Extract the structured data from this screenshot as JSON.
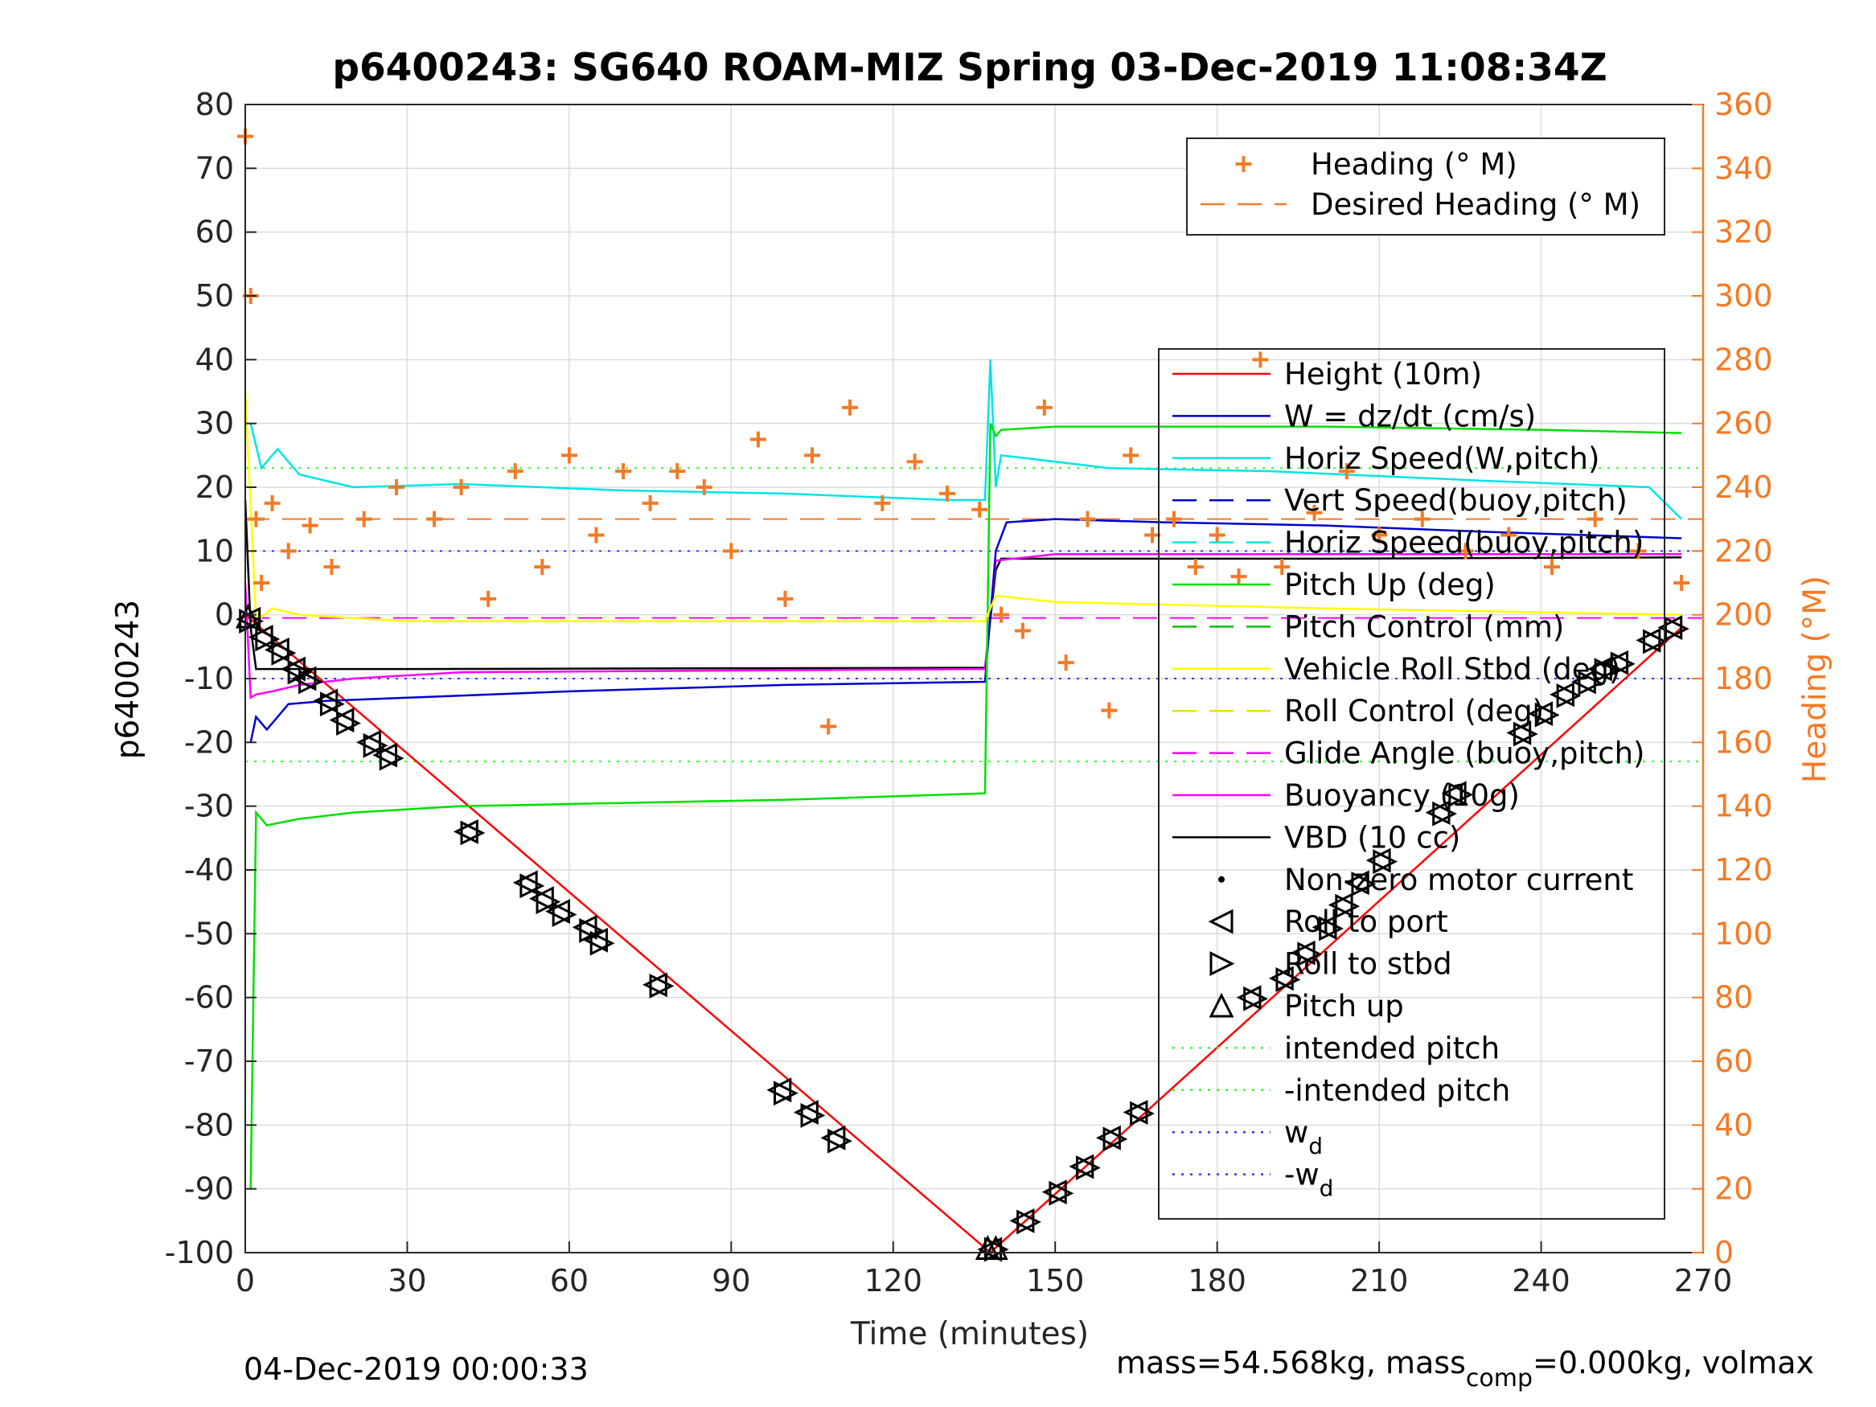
{
  "chart_data": {
    "type": "line",
    "title": "p6400243: SG640 ROAM-MIZ Spring 03-Dec-2019 11:08:34Z",
    "xlabel": "Time (minutes)",
    "ylabel": "p6400243",
    "y2label": "Heading (°M)",
    "xlim": [
      0,
      270
    ],
    "ylim": [
      -100,
      80
    ],
    "y2lim": [
      0,
      360
    ],
    "xticks": [
      0,
      30,
      60,
      90,
      120,
      150,
      180,
      210,
      240,
      270
    ],
    "yticks": [
      -100,
      -90,
      -80,
      -70,
      -60,
      -50,
      -40,
      -30,
      -20,
      -10,
      0,
      10,
      20,
      30,
      40,
      50,
      60,
      70,
      80
    ],
    "y2ticks": [
      0,
      20,
      40,
      60,
      80,
      100,
      120,
      140,
      160,
      180,
      200,
      220,
      240,
      260,
      280,
      300,
      320,
      340,
      360
    ],
    "grid": true,
    "footer_left": "04-Dec-2019 00:00:33",
    "footer_right": "mass=54.568kg, mass",
    "footer_right_sub": "comp",
    "footer_right_tail": "=0.000kg, volmax",
    "legend_top": {
      "placement": "top-right",
      "entries": [
        {
          "label": "Heading (° M)",
          "color": "#f47a24",
          "style": "plus"
        },
        {
          "label": "Desired Heading (° M)",
          "color": "#f47a24",
          "style": "dash"
        }
      ]
    },
    "legend_main": {
      "placement": "right",
      "entries": [
        {
          "label": "Height (10m)",
          "color": "#ff0000",
          "style": "solid"
        },
        {
          "label": "W = dz/dt (cm/s)",
          "color": "#0000cc",
          "style": "solid"
        },
        {
          "label": "Horiz Speed(W,pitch)",
          "color": "#00e5e5",
          "style": "solid"
        },
        {
          "label": "Vert Speed(buoy,pitch)",
          "color": "#0000cc",
          "style": "dash"
        },
        {
          "label": "Horiz Speed(buoy,pitch)",
          "color": "#00e5e5",
          "style": "dash"
        },
        {
          "label": "Pitch Up (deg)",
          "color": "#00e000",
          "style": "solid"
        },
        {
          "label": "Pitch Control (mm)",
          "color": "#00c000",
          "style": "dash"
        },
        {
          "label": "Vehicle Roll Stbd (deg)",
          "color": "#ffff00",
          "style": "solid"
        },
        {
          "label": "Roll Control (deg)",
          "color": "#e6e600",
          "style": "dash"
        },
        {
          "label": "Glide Angle (buoy,pitch)",
          "color": "#ff00ff",
          "style": "dash"
        },
        {
          "label": "Buoyancy (10g)",
          "color": "#ff00ff",
          "style": "solid"
        },
        {
          "label": "VBD (10 cc)",
          "color": "#000000",
          "style": "solid"
        },
        {
          "label": "Non-zero motor current",
          "color": "#000000",
          "style": "dot"
        },
        {
          "label": "Roll to port",
          "color": "#000000",
          "style": "tri-left"
        },
        {
          "label": "Roll to stbd",
          "color": "#000000",
          "style": "tri-right"
        },
        {
          "label": "Pitch up",
          "color": "#000000",
          "style": "tri-up"
        },
        {
          "label": "intended pitch",
          "color": "#33ff33",
          "style": "dotted"
        },
        {
          "label": "-intended pitch",
          "color": "#33ff33",
          "style": "dotted"
        },
        {
          "label": "w",
          "sub": "d",
          "color": "#3333ff",
          "style": "dotted"
        },
        {
          "label": "-w",
          "sub": "d",
          "color": "#3333ff",
          "style": "dotted"
        }
      ]
    },
    "reference_lines": {
      "intended_pitch": 23,
      "neg_intended_pitch": -23,
      "w_d": 10,
      "neg_w_d": -10,
      "desired_heading_deg": 230,
      "glide_angle": -0.5
    },
    "series": [
      {
        "name": "Height (10m)",
        "color": "#ff0000",
        "x": [
          0,
          138,
          266
        ],
        "y": [
          0,
          -100,
          -2
        ]
      },
      {
        "name": "VBD (10 cc)",
        "color": "#000000",
        "x": [
          0,
          1,
          2,
          30,
          137,
          139,
          140,
          200,
          266
        ],
        "y": [
          18,
          -2,
          -8.5,
          -8.5,
          -8.3,
          7,
          8.8,
          8.8,
          9
        ]
      },
      {
        "name": "Buoyancy (10g)",
        "color": "#ff00ff",
        "x": [
          0,
          1,
          2,
          5,
          10,
          20,
          40,
          137,
          139,
          150,
          266
        ],
        "y": [
          5,
          -13,
          -12.5,
          -12,
          -11,
          -10,
          -9,
          -8.5,
          8.5,
          9.5,
          9.5
        ]
      },
      {
        "name": "W = dz/dt (cm/s)",
        "color": "#0000cc",
        "x": [
          1,
          2,
          4,
          8,
          15,
          30,
          60,
          100,
          137,
          139,
          141,
          150,
          170,
          200,
          230,
          266
        ],
        "y": [
          -20,
          -16,
          -18,
          -14,
          -13.5,
          -13,
          -12,
          -11,
          -10.5,
          10,
          14.5,
          15,
          14.5,
          14,
          13,
          12
        ]
      },
      {
        "name": "Horiz Speed(W,pitch)",
        "color": "#00e5e5",
        "x": [
          1,
          3,
          6,
          10,
          20,
          40,
          70,
          100,
          130,
          137,
          138,
          139,
          140,
          145,
          160,
          190,
          230,
          260,
          266
        ],
        "y": [
          30,
          23,
          26,
          22,
          20,
          20.5,
          19.5,
          19,
          18,
          18,
          40,
          20,
          25,
          24.5,
          23,
          22.5,
          21,
          20,
          15
        ]
      },
      {
        "name": "Pitch Up (deg)",
        "color": "#00e000",
        "x": [
          1,
          2,
          4,
          10,
          20,
          40,
          70,
          100,
          137,
          138,
          139,
          140,
          150,
          200,
          240,
          266
        ],
        "y": [
          -90,
          -31,
          -33,
          -32,
          -31,
          -30,
          -29.5,
          -29,
          -28,
          30,
          28,
          29,
          29.5,
          29.5,
          29,
          28.5
        ]
      },
      {
        "name": "Vehicle Roll Stbd (deg)",
        "color": "#ffff00",
        "x": [
          0,
          2,
          5,
          10,
          30,
          60,
          100,
          137,
          139,
          150,
          200,
          266
        ],
        "y": [
          35,
          -1,
          1,
          0,
          -1,
          -1,
          -1,
          -1,
          3,
          2,
          1,
          0
        ]
      },
      {
        "name": "Heading (° M)",
        "color": "#f47a24",
        "x": [
          0,
          1,
          2,
          3,
          5,
          8,
          12,
          16,
          22,
          28,
          35,
          40,
          45,
          50,
          55,
          60,
          65,
          70,
          75,
          80,
          85,
          90,
          95,
          100,
          105,
          108,
          112,
          118,
          124,
          130,
          136,
          140,
          144,
          148,
          152,
          156,
          160,
          164,
          168,
          172,
          176,
          180,
          184,
          188,
          192,
          198,
          204,
          210,
          218,
          226,
          234,
          242,
          250,
          258,
          266
        ],
        "y": [
          350,
          300,
          230,
          210,
          235,
          220,
          228,
          215,
          230,
          240,
          230,
          240,
          205,
          245,
          215,
          250,
          225,
          245,
          235,
          245,
          240,
          220,
          255,
          205,
          250,
          165,
          265,
          235,
          248,
          238,
          233,
          200,
          195,
          265,
          185,
          230,
          170,
          250,
          225,
          230,
          215,
          225,
          212,
          280,
          215,
          232,
          245,
          225,
          230,
          220,
          225,
          215,
          230,
          220,
          210
        ]
      }
    ],
    "markers": {
      "roll_to_port": [
        {
          "x": 0.7,
          "y": -0.7
        },
        {
          "x": 3,
          "y": -3.5
        },
        {
          "x": 6,
          "y": -5.5
        },
        {
          "x": 9,
          "y": -8.5
        },
        {
          "x": 11,
          "y": -10
        },
        {
          "x": 15,
          "y": -13.5
        },
        {
          "x": 18,
          "y": -16.5
        },
        {
          "x": 23,
          "y": -20
        },
        {
          "x": 26,
          "y": -22
        },
        {
          "x": 41,
          "y": -34
        },
        {
          "x": 52,
          "y": -42
        },
        {
          "x": 55,
          "y": -44.5
        },
        {
          "x": 58,
          "y": -46.5
        },
        {
          "x": 63,
          "y": -49
        },
        {
          "x": 65,
          "y": -51
        },
        {
          "x": 76,
          "y": -58
        },
        {
          "x": 99,
          "y": -74.5
        },
        {
          "x": 104,
          "y": -78
        },
        {
          "x": 109,
          "y": -82
        },
        {
          "x": 138,
          "y": -99.5
        },
        {
          "x": 144,
          "y": -95
        },
        {
          "x": 150,
          "y": -90.5
        },
        {
          "x": 155,
          "y": -86.5
        },
        {
          "x": 160,
          "y": -82
        },
        {
          "x": 165,
          "y": -78
        },
        {
          "x": 186,
          "y": -60
        },
        {
          "x": 192,
          "y": -57
        },
        {
          "x": 196,
          "y": -53
        },
        {
          "x": 200,
          "y": -49
        },
        {
          "x": 203,
          "y": -45.5
        },
        {
          "x": 206,
          "y": -42
        },
        {
          "x": 210,
          "y": -38.5
        },
        {
          "x": 221,
          "y": -31
        },
        {
          "x": 224,
          "y": -28
        },
        {
          "x": 236,
          "y": -18.5
        },
        {
          "x": 240,
          "y": -15.5
        },
        {
          "x": 244,
          "y": -12.5
        },
        {
          "x": 248,
          "y": -10.5
        },
        {
          "x": 251,
          "y": -8.5
        },
        {
          "x": 254,
          "y": -7.5
        },
        {
          "x": 260,
          "y": -4
        },
        {
          "x": 264,
          "y": -2
        }
      ],
      "roll_to_stbd": [
        {
          "x": 1,
          "y": -1
        },
        {
          "x": 4,
          "y": -3.8
        },
        {
          "x": 7,
          "y": -6
        },
        {
          "x": 10,
          "y": -9
        },
        {
          "x": 12,
          "y": -10.5
        },
        {
          "x": 16,
          "y": -14
        },
        {
          "x": 19,
          "y": -17
        },
        {
          "x": 24,
          "y": -20.5
        },
        {
          "x": 27,
          "y": -22.5
        },
        {
          "x": 42,
          "y": -34.2
        },
        {
          "x": 53,
          "y": -42.5
        },
        {
          "x": 56,
          "y": -45
        },
        {
          "x": 59,
          "y": -47
        },
        {
          "x": 64,
          "y": -49.5
        },
        {
          "x": 66,
          "y": -51.5
        },
        {
          "x": 77,
          "y": -58.2
        },
        {
          "x": 100,
          "y": -75
        },
        {
          "x": 105,
          "y": -78.5
        },
        {
          "x": 110,
          "y": -82.5
        },
        {
          "x": 139,
          "y": -99.5
        },
        {
          "x": 145,
          "y": -95.2
        },
        {
          "x": 151,
          "y": -90.7
        },
        {
          "x": 156,
          "y": -86.7
        },
        {
          "x": 161,
          "y": -82.2
        },
        {
          "x": 166,
          "y": -78.2
        },
        {
          "x": 187,
          "y": -60.2
        },
        {
          "x": 193,
          "y": -57.2
        },
        {
          "x": 197,
          "y": -53.2
        },
        {
          "x": 201,
          "y": -49.2
        },
        {
          "x": 204,
          "y": -45.7
        },
        {
          "x": 207,
          "y": -42.2
        },
        {
          "x": 211,
          "y": -38.7
        },
        {
          "x": 222,
          "y": -31.2
        },
        {
          "x": 225,
          "y": -28.2
        },
        {
          "x": 237,
          "y": -18.7
        },
        {
          "x": 241,
          "y": -15.7
        },
        {
          "x": 245,
          "y": -12.7
        },
        {
          "x": 249,
          "y": -10.7
        },
        {
          "x": 252,
          "y": -8.7
        },
        {
          "x": 255,
          "y": -7.7
        },
        {
          "x": 261,
          "y": -4.2
        },
        {
          "x": 265,
          "y": -2.2
        }
      ],
      "pitch_up": [
        {
          "x": 0.5,
          "y": -0.3
        },
        {
          "x": 137.5,
          "y": -99.3
        },
        {
          "x": 139,
          "y": -99.3
        }
      ]
    }
  }
}
